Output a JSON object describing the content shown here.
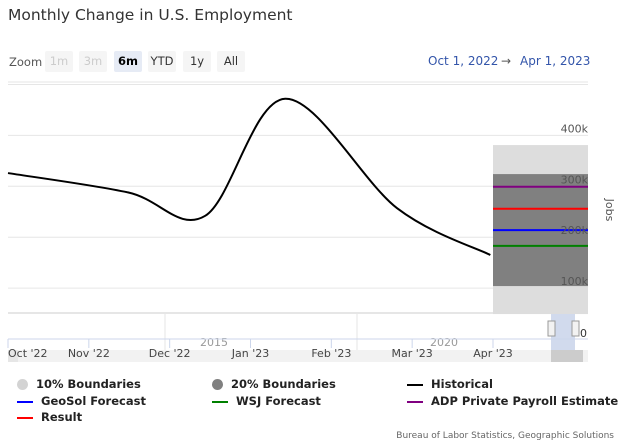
{
  "chart_data": {
    "type": "line",
    "title": "Monthly Change in U.S. Employment",
    "ylabel": "Jobs",
    "ylim": [
      50000,
      500000
    ],
    "y_ticks": [
      "0",
      "100k",
      "200k",
      "300k",
      "400k"
    ],
    "x_ticks": [
      "Oct '22",
      "Nov '22",
      "Dec '22",
      "Jan '23",
      "Feb '23",
      "Mar '23",
      "Apr '23"
    ],
    "navigator_ticks": [
      "2015",
      "2020"
    ],
    "series": [
      {
        "name": "Historical",
        "color": "#000000",
        "points": [
          {
            "date": "2022-10-01",
            "value": 326000
          },
          {
            "date": "2022-11-15",
            "value": 288000
          },
          {
            "date": "2022-12-14",
            "value": 242000
          },
          {
            "date": "2023-01-13",
            "value": 472000
          },
          {
            "date": "2023-02-24",
            "value": 257000
          },
          {
            "date": "2023-03-31",
            "value": 165000
          }
        ]
      },
      {
        "name": "GeoSol Forecast",
        "color": "#0000ff",
        "value": 214000
      },
      {
        "name": "WSJ Forecast",
        "color": "#008000",
        "value": 183000
      },
      {
        "name": "ADP Private Payroll Estimate",
        "color": "#800080",
        "value": 299000
      },
      {
        "name": "Result",
        "color": "#ff0000",
        "value": 256000
      }
    ],
    "bands": [
      {
        "name": "10% Boundaries",
        "color": "#dddddd",
        "low": 49000,
        "high": 381000
      },
      {
        "name": "20% Boundaries",
        "color": "#808080",
        "low": 104000,
        "high": 324000
      }
    ],
    "forecast_period": [
      "2023-04-01",
      "2023-05-01"
    ],
    "legend_position": "bottom"
  },
  "zoom": {
    "label": "Zoom",
    "buttons": [
      "1m",
      "3m",
      "6m",
      "YTD",
      "1y",
      "All"
    ],
    "selected": "6m",
    "disabled": [
      "1m",
      "3m"
    ]
  },
  "range": {
    "from": "Oct 1, 2022",
    "arrow": "→",
    "to": "Apr 1, 2023"
  },
  "legend": [
    "10% Boundaries",
    "20% Boundaries",
    "Historical",
    "GeoSol Forecast",
    "WSJ Forecast",
    "ADP Private Payroll Estimate",
    "Result"
  ],
  "credit": "Bureau of Labor Statistics, Geographic Solutions"
}
